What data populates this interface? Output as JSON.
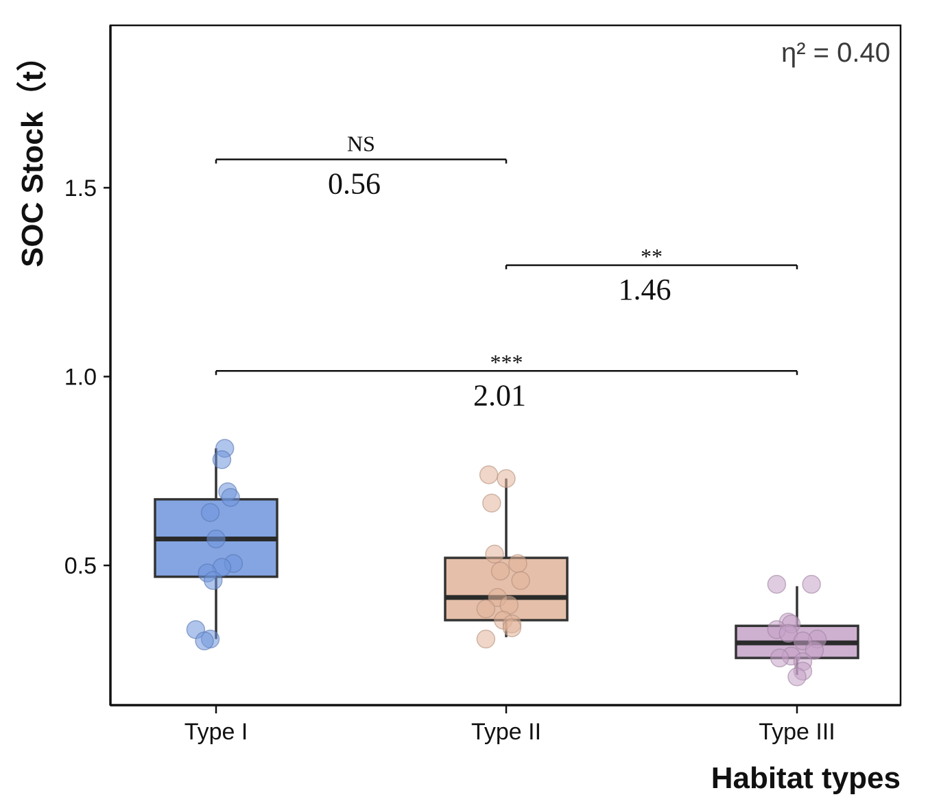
{
  "chart_data": {
    "type": "box",
    "xlabel": "Habitat types",
    "ylabel": "SOC Stock（t）",
    "ylim": [
      0.13,
      1.93
    ],
    "yticks": [
      0.5,
      1.0,
      1.5
    ],
    "ytick_labels": [
      "0.5",
      "1.0",
      "1.5"
    ],
    "categories": [
      "Type I",
      "Type II",
      "Type III"
    ],
    "colors": [
      "#6f95dd",
      "#e1b49b",
      "#c6a2c8"
    ],
    "boxes": [
      {
        "category": "Type I",
        "q1": 0.47,
        "median": 0.57,
        "q3": 0.675,
        "whisker_low": 0.305,
        "whisker_high": 0.81
      },
      {
        "category": "Type II",
        "q1": 0.355,
        "median": 0.415,
        "q3": 0.52,
        "whisker_low": 0.31,
        "whisker_high": 0.73
      },
      {
        "category": "Type III",
        "q1": 0.255,
        "median": 0.295,
        "q3": 0.34,
        "whisker_low": 0.21,
        "whisker_high": 0.445
      }
    ],
    "points": [
      {
        "category": "Type I",
        "values": [
          0.81,
          0.78,
          0.695,
          0.68,
          0.64,
          0.57,
          0.505,
          0.495,
          0.48,
          0.46,
          0.33,
          0.305,
          0.3
        ],
        "offsets": [
          0.03,
          0.02,
          0.04,
          0.05,
          -0.02,
          0.0,
          0.06,
          0.02,
          -0.03,
          -0.01,
          -0.07,
          -0.02,
          -0.04
        ]
      },
      {
        "category": "Type II",
        "values": [
          0.74,
          0.73,
          0.665,
          0.53,
          0.505,
          0.485,
          0.46,
          0.415,
          0.395,
          0.385,
          0.355,
          0.345,
          0.335,
          0.305
        ],
        "offsets": [
          -0.06,
          0.0,
          -0.05,
          -0.04,
          0.04,
          -0.02,
          0.05,
          -0.03,
          0.01,
          -0.07,
          -0.01,
          0.02,
          0.02,
          -0.07
        ]
      },
      {
        "category": "Type III",
        "values": [
          0.45,
          0.45,
          0.35,
          0.345,
          0.33,
          0.32,
          0.305,
          0.3,
          0.275,
          0.26,
          0.255,
          0.245,
          0.22,
          0.205
        ],
        "offsets": [
          -0.07,
          0.05,
          -0.03,
          -0.02,
          -0.07,
          -0.03,
          0.07,
          0.02,
          0.06,
          -0.02,
          -0.06,
          0.02,
          0.02,
          0.0
        ]
      }
    ],
    "comparisons": [
      {
        "from": "Type I",
        "to": "Type II",
        "y": 1.575,
        "sig": "NS",
        "d": "0.56"
      },
      {
        "from": "Type II",
        "to": "Type III",
        "y": 1.295,
        "sig": "**",
        "d": "1.46"
      },
      {
        "from": "Type I",
        "to": "Type III",
        "y": 1.015,
        "sig": "***",
        "d": "2.01"
      }
    ],
    "effect_size": "η² = 0.40",
    "grid": false,
    "legend": "none"
  }
}
